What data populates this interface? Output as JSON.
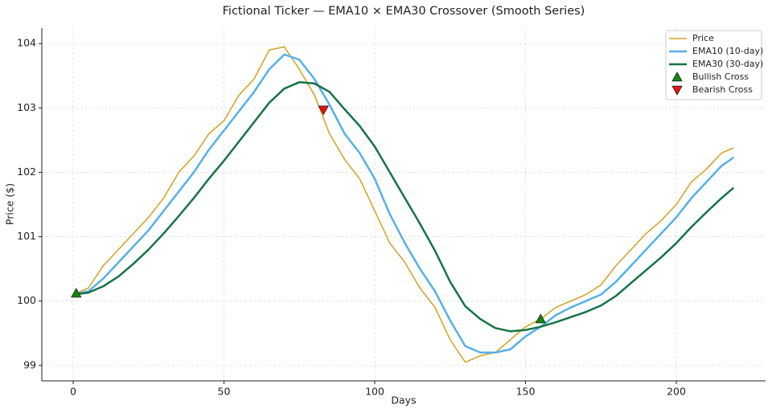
{
  "chart_data": {
    "type": "line",
    "title": "Fictional Ticker — EMA10 × EMA30 Crossover (Smooth Series)",
    "x_label": "Days",
    "y_label": "Price ($)",
    "x": [
      0,
      5,
      10,
      15,
      20,
      25,
      30,
      35,
      40,
      45,
      50,
      55,
      60,
      65,
      70,
      75,
      80,
      85,
      90,
      95,
      100,
      105,
      110,
      115,
      120,
      125,
      130,
      135,
      140,
      145,
      150,
      155,
      160,
      165,
      170,
      175,
      180,
      185,
      190,
      195,
      200,
      205,
      210,
      215,
      219
    ],
    "series": [
      {
        "name": "Price",
        "color": "#d4a020",
        "width": 1.5,
        "values": [
          100.1,
          100.2,
          100.55,
          100.8,
          101.05,
          101.3,
          101.6,
          102.0,
          102.25,
          102.6,
          102.8,
          103.2,
          103.45,
          103.9,
          103.95,
          103.6,
          103.2,
          102.6,
          102.2,
          101.9,
          101.4,
          100.9,
          100.6,
          100.2,
          99.9,
          99.4,
          99.05,
          99.15,
          99.2,
          99.4,
          99.6,
          99.72,
          99.9,
          100.0,
          100.1,
          100.25,
          100.55,
          100.8,
          101.05,
          101.25,
          101.5,
          101.85,
          102.05,
          102.3,
          102.38
        ]
      },
      {
        "name": "EMA10 (10-day)",
        "color": "#56b0e6",
        "width": 2.5,
        "values": [
          100.1,
          100.15,
          100.35,
          100.6,
          100.85,
          101.1,
          101.4,
          101.7,
          102.0,
          102.35,
          102.65,
          102.95,
          103.25,
          103.6,
          103.83,
          103.75,
          103.45,
          103.05,
          102.6,
          102.3,
          101.9,
          101.35,
          100.9,
          100.5,
          100.15,
          99.7,
          99.3,
          99.2,
          99.2,
          99.25,
          99.45,
          99.6,
          99.78,
          99.9,
          100.0,
          100.1,
          100.3,
          100.55,
          100.8,
          101.05,
          101.3,
          101.6,
          101.85,
          102.1,
          102.23
        ]
      },
      {
        "name": "EMA30 (30-day)",
        "color": "#157347",
        "width": 2.5,
        "values": [
          100.1,
          100.13,
          100.23,
          100.38,
          100.58,
          100.8,
          101.05,
          101.32,
          101.6,
          101.9,
          102.18,
          102.48,
          102.78,
          103.08,
          103.3,
          103.4,
          103.38,
          103.25,
          102.98,
          102.72,
          102.4,
          102.0,
          101.6,
          101.2,
          100.78,
          100.3,
          99.92,
          99.72,
          99.58,
          99.53,
          99.55,
          99.6,
          99.67,
          99.75,
          99.83,
          99.93,
          100.08,
          100.28,
          100.48,
          100.68,
          100.9,
          101.15,
          101.38,
          101.6,
          101.76
        ]
      },
      {
        "name": "Bullish Cross",
        "color": "#118811",
        "marker": "triangle-up",
        "x": [
          1,
          155
        ],
        "values": [
          100.12,
          99.72
        ]
      },
      {
        "name": "Bearish Cross",
        "color": "#ee1111",
        "marker": "triangle-down",
        "x": [
          83
        ],
        "values": [
          102.97
        ]
      }
    ],
    "xlim": [
      -10.4,
      229.6
    ],
    "xticks": [
      0,
      50,
      100,
      150,
      200
    ],
    "ylim": [
      98.76,
      104.24
    ],
    "yticks": [
      99,
      100,
      101,
      102,
      103,
      104
    ],
    "grid": true,
    "legend": "upper right"
  }
}
